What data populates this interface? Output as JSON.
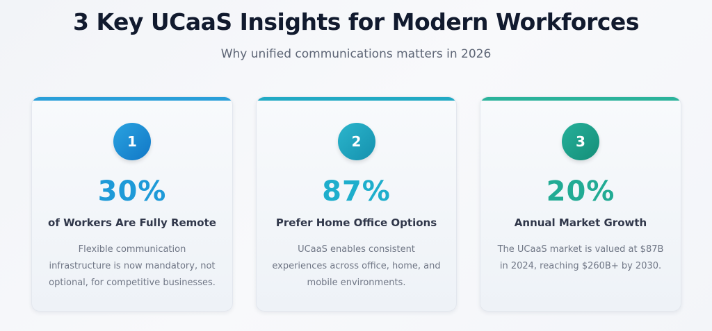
{
  "header": {
    "title": "3 Key UCaaS Insights for Modern Workforces",
    "subtitle": "Why unified communications matters in 2026"
  },
  "cards": [
    {
      "number": "1",
      "stat": "30%",
      "label": "of Workers Are Fully Remote",
      "description": "Flexible communication infrastructure is now mandatory, not optional, for competitive businesses.",
      "accent_color": "#1e9ad8"
    },
    {
      "number": "2",
      "stat": "87%",
      "label": "Prefer Home Office Options",
      "description": "UCaaS enables consistent experiences across office, home, and mobile environments.",
      "accent_color": "#1eaecc"
    },
    {
      "number": "3",
      "stat": "20%",
      "label": "Annual Market Growth",
      "description": "The UCaaS market is valued at $87B in 2024, reaching $260B+ by 2030.",
      "accent_color": "#22ab94"
    }
  ]
}
